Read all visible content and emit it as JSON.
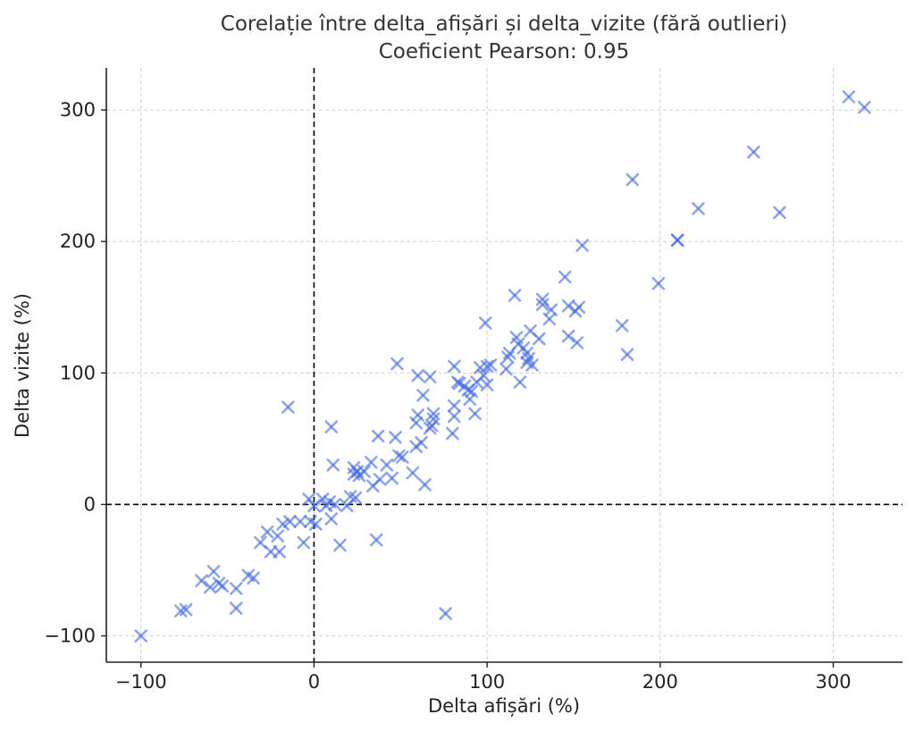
{
  "chart_data": {
    "type": "scatter",
    "title": "Corelație între delta_afișări și delta_vizite (fără outlieri)",
    "subtitle": "Coeficient Pearson: 0.95",
    "xlabel": "Delta afișări (%)",
    "ylabel": "Delta vizite (%)",
    "xlim": [
      -120,
      340
    ],
    "ylim": [
      -120,
      332
    ],
    "xticks": [
      -100,
      0,
      100,
      200,
      300
    ],
    "yticks": [
      -100,
      0,
      100,
      200,
      300
    ],
    "xtick_labels": [
      "−100",
      "0",
      "100",
      "200",
      "300"
    ],
    "ytick_labels": [
      "−100",
      "0",
      "100",
      "200",
      "300"
    ],
    "grid": true,
    "zero_lines": true,
    "marker": "x",
    "color": "#4169E1",
    "points": [
      [
        -100,
        -100
      ],
      [
        -77,
        -81
      ],
      [
        -74,
        -80
      ],
      [
        -65,
        -58
      ],
      [
        -60,
        -63
      ],
      [
        -58,
        -51
      ],
      [
        -55,
        -60
      ],
      [
        -53,
        -62
      ],
      [
        -45,
        -79
      ],
      [
        -45,
        -64
      ],
      [
        -38,
        -54
      ],
      [
        -35,
        -56
      ],
      [
        -31,
        -29
      ],
      [
        -27,
        -21
      ],
      [
        -25,
        -36
      ],
      [
        -21,
        -24
      ],
      [
        -20,
        -36
      ],
      [
        -18,
        -15
      ],
      [
        -14,
        -13
      ],
      [
        -15,
        74
      ],
      [
        -8,
        -13
      ],
      [
        -6,
        -29
      ],
      [
        -3,
        4
      ],
      [
        -2,
        -13
      ],
      [
        0,
        -1
      ],
      [
        1,
        -15
      ],
      [
        5,
        4
      ],
      [
        7,
        -1
      ],
      [
        9,
        2
      ],
      [
        10,
        59
      ],
      [
        11,
        30
      ],
      [
        10,
        -11
      ],
      [
        12,
        0
      ],
      [
        15,
        -31
      ],
      [
        19,
        -1
      ],
      [
        21,
        6
      ],
      [
        23,
        28
      ],
      [
        23,
        23
      ],
      [
        24,
        5
      ],
      [
        25,
        25
      ],
      [
        26,
        22
      ],
      [
        29,
        25
      ],
      [
        33,
        32
      ],
      [
        34,
        14
      ],
      [
        36,
        -27
      ],
      [
        37,
        52
      ],
      [
        38,
        19
      ],
      [
        42,
        30
      ],
      [
        45,
        20
      ],
      [
        47,
        51
      ],
      [
        48,
        107
      ],
      [
        49,
        37
      ],
      [
        51,
        36
      ],
      [
        57,
        24
      ],
      [
        59,
        44
      ],
      [
        59,
        62
      ],
      [
        60,
        98
      ],
      [
        60,
        68
      ],
      [
        62,
        47
      ],
      [
        63,
        83
      ],
      [
        64,
        15
      ],
      [
        67,
        97
      ],
      [
        67,
        58
      ],
      [
        68,
        60
      ],
      [
        69,
        69
      ],
      [
        69,
        65
      ],
      [
        76,
        -83
      ],
      [
        80,
        54
      ],
      [
        81,
        67
      ],
      [
        81,
        75
      ],
      [
        81,
        105
      ],
      [
        83,
        93
      ],
      [
        84,
        92
      ],
      [
        87,
        90
      ],
      [
        89,
        87
      ],
      [
        90,
        80
      ],
      [
        91,
        86
      ],
      [
        93,
        69
      ],
      [
        94,
        93
      ],
      [
        96,
        104
      ],
      [
        98,
        98
      ],
      [
        99,
        138
      ],
      [
        100,
        105
      ],
      [
        100,
        91
      ],
      [
        102,
        106
      ],
      [
        112,
        112
      ],
      [
        111,
        103
      ],
      [
        113,
        115
      ],
      [
        116,
        159
      ],
      [
        117,
        127
      ],
      [
        118,
        122
      ],
      [
        119,
        93
      ],
      [
        121,
        119
      ],
      [
        123,
        108
      ],
      [
        123,
        115
      ],
      [
        124,
        111
      ],
      [
        125,
        132
      ],
      [
        126,
        106
      ],
      [
        130,
        126
      ],
      [
        132,
        156
      ],
      [
        132,
        152
      ],
      [
        136,
        141
      ],
      [
        137,
        148
      ],
      [
        145,
        173
      ],
      [
        147,
        151
      ],
      [
        147,
        128
      ],
      [
        151,
        147
      ],
      [
        152,
        123
      ],
      [
        153,
        150
      ],
      [
        155,
        197
      ],
      [
        178,
        136
      ],
      [
        181,
        114
      ],
      [
        184,
        247
      ],
      [
        199,
        168
      ],
      [
        210,
        201
      ],
      [
        210,
        201
      ],
      [
        222,
        225
      ],
      [
        254,
        268
      ],
      [
        269,
        222
      ],
      [
        309,
        310
      ],
      [
        318,
        302
      ]
    ]
  }
}
